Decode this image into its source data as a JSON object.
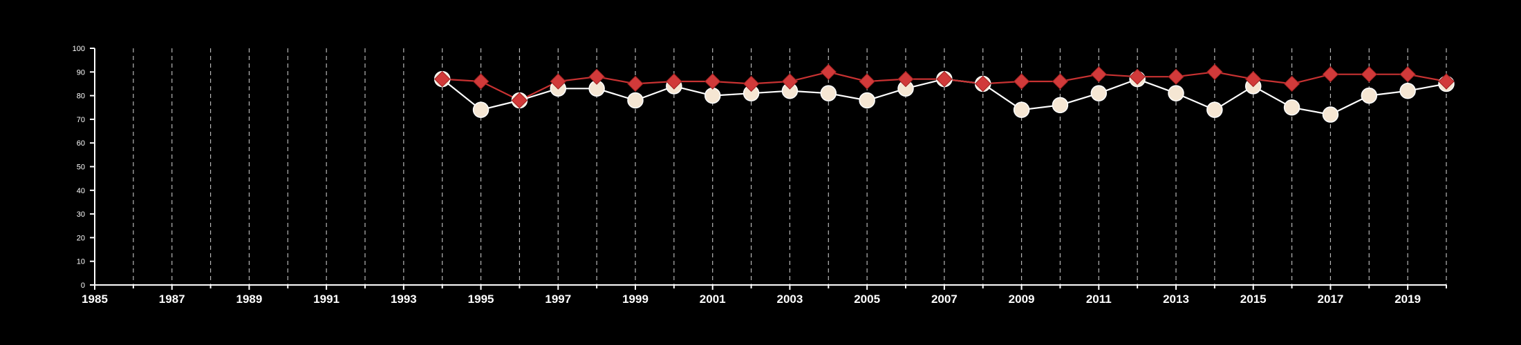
{
  "chart_data": {
    "type": "line",
    "title": "",
    "xlabel": "",
    "ylabel": "",
    "xlim": [
      1985,
      2020
    ],
    "ylim": [
      0,
      100
    ],
    "y_ticks": [
      0,
      10,
      20,
      30,
      40,
      50,
      60,
      70,
      80,
      90,
      100
    ],
    "x_tick_labels": [
      1985,
      1987,
      1989,
      1991,
      1993,
      1995,
      1997,
      1999,
      2001,
      2003,
      2005,
      2007,
      2009,
      2011,
      2013,
      2015,
      2017,
      2019
    ],
    "x_minor_ticks": [
      1986,
      1988,
      1990,
      1992,
      1994,
      1996,
      1998,
      2000,
      2002,
      2004,
      2006,
      2008,
      2010,
      2012,
      2014,
      2016,
      2018,
      2020
    ],
    "grid": "vertical dashed lines at every year",
    "background": "#000000",
    "x": [
      1994,
      1995,
      1996,
      1997,
      1998,
      1999,
      2000,
      2001,
      2002,
      2003,
      2004,
      2005,
      2006,
      2007,
      2008,
      2009,
      2010,
      2011,
      2012,
      2013,
      2014,
      2015,
      2016,
      2017,
      2018,
      2019,
      2020
    ],
    "series": [
      {
        "marker": "circle",
        "color": "#f5e6d3",
        "line_color": "#ffffff",
        "values": [
          87,
          74,
          78,
          83,
          83,
          78,
          84,
          80,
          81,
          82,
          81,
          78,
          83,
          87,
          85,
          74,
          76,
          81,
          87,
          81,
          74,
          84,
          75,
          72,
          80,
          82,
          85
        ]
      },
      {
        "marker": "diamond",
        "color": "#d13a3a",
        "line_color": "#c83232",
        "values": [
          87,
          86,
          78,
          86,
          88,
          85,
          86,
          86,
          85,
          86,
          90,
          86,
          87,
          87,
          85,
          86,
          86,
          89,
          88,
          88,
          90,
          87,
          85,
          89,
          89,
          89,
          86
        ]
      }
    ]
  }
}
